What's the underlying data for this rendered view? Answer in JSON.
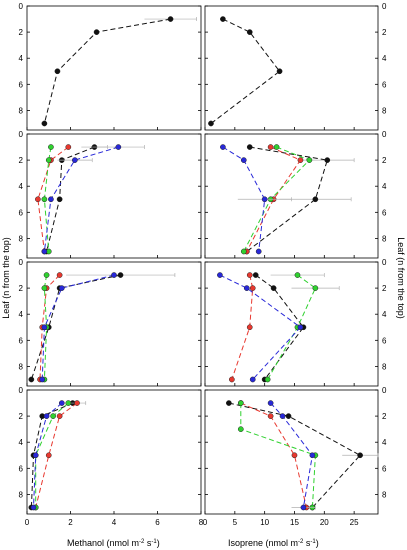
{
  "figure": {
    "y_axis_label_left": "Leaf (n  from the top)",
    "y_axis_label_right": "Leaf (n  from the top)",
    "x_axis_label_left": "Methanol (nmol m",
    "x_axis_label_left_sup": "-2",
    "x_axis_label_left_mid": " s",
    "x_axis_label_left_sup2": "-1",
    "x_axis_label_left_end": ")",
    "x_axis_label_right": "Isoprene (nmol m",
    "x_axis_label_right_sup": "-2",
    "x_axis_label_right_mid": " s",
    "x_axis_label_right_sup2": "-1",
    "x_axis_label_right_end": ")",
    "colors": {
      "black": "#111111",
      "red": "#e8382f",
      "green": "#2fd12f",
      "blue": "#2828d8",
      "errorbar": "#b0b0b0"
    }
  },
  "chart_data": [
    {
      "panel": "row1-methanol",
      "type": "line",
      "xlim": [
        0,
        8
      ],
      "ylim": [
        9.5,
        0
      ],
      "xticks": [
        0,
        2,
        4,
        6,
        8
      ],
      "yticks": [
        0,
        2,
        4,
        6,
        8
      ],
      "series": [
        {
          "color": "black",
          "points": [
            [
              6.6,
              1
            ],
            [
              3.2,
              2
            ],
            [
              1.4,
              5
            ],
            [
              0.8,
              9
            ]
          ],
          "err": [
            1.2,
            0,
            0,
            0
          ]
        }
      ]
    },
    {
      "panel": "row1-isoprene",
      "type": "line",
      "xlim": [
        0,
        29
      ],
      "ylim": [
        9.5,
        0
      ],
      "xticks": [
        0,
        5,
        10,
        15,
        20,
        25
      ],
      "yticks": [
        0,
        2,
        4,
        6,
        8
      ],
      "series": [
        {
          "color": "black",
          "points": [
            [
              3,
              1
            ],
            [
              7.5,
              2
            ],
            [
              12.5,
              5
            ],
            [
              1,
              9
            ]
          ],
          "err": [
            0,
            0,
            0,
            0
          ]
        }
      ]
    },
    {
      "panel": "row2-methanol",
      "type": "line",
      "xlim": [
        0,
        8
      ],
      "ylim": [
        9.5,
        0
      ],
      "xticks": [
        0,
        2,
        4,
        6,
        8
      ],
      "yticks": [
        0,
        2,
        4,
        6,
        8
      ],
      "series": [
        {
          "color": "black",
          "points": [
            [
              3.1,
              1
            ],
            [
              1.6,
              2
            ],
            [
              1.5,
              5
            ],
            [
              0.9,
              9
            ]
          ],
          "err": [
            0.6,
            0,
            0,
            0
          ]
        },
        {
          "color": "red",
          "points": [
            [
              1.9,
              1
            ],
            [
              1.1,
              2
            ],
            [
              0.5,
              5
            ],
            [
              0.8,
              9
            ]
          ],
          "err": [
            0,
            0,
            0,
            0
          ]
        },
        {
          "color": "green",
          "points": [
            [
              1.1,
              1
            ],
            [
              1.0,
              2
            ],
            [
              0.8,
              5
            ],
            [
              1.0,
              9
            ]
          ],
          "err": [
            0,
            0,
            0,
            0
          ]
        },
        {
          "color": "blue",
          "points": [
            [
              4.2,
              1
            ],
            [
              2.2,
              2
            ],
            [
              1.1,
              5
            ],
            [
              0.8,
              9
            ]
          ],
          "err": [
            1.2,
            0.8,
            0,
            0
          ]
        }
      ]
    },
    {
      "panel": "row2-isoprene",
      "type": "line",
      "xlim": [
        0,
        29
      ],
      "ylim": [
        9.5,
        0
      ],
      "xticks": [
        0,
        5,
        10,
        15,
        20,
        25
      ],
      "yticks": [
        0,
        2,
        4,
        6,
        8
      ],
      "series": [
        {
          "color": "black",
          "points": [
            [
              7.5,
              1
            ],
            [
              20.5,
              2
            ],
            [
              18.5,
              5
            ],
            [
              7,
              9
            ]
          ],
          "err": [
            0,
            4.5,
            6,
            0
          ]
        },
        {
          "color": "red",
          "points": [
            [
              11,
              1
            ],
            [
              16,
              2
            ],
            [
              11.5,
              5
            ],
            [
              7,
              9
            ]
          ],
          "err": [
            0,
            0,
            0,
            0
          ]
        },
        {
          "color": "green",
          "points": [
            [
              12,
              1
            ],
            [
              17.5,
              2
            ],
            [
              11,
              5
            ],
            [
              6.5,
              9
            ]
          ],
          "err": [
            0,
            0,
            0,
            0
          ]
        },
        {
          "color": "blue",
          "points": [
            [
              3,
              1
            ],
            [
              6.5,
              2
            ],
            [
              10,
              5
            ],
            [
              9,
              9
            ]
          ],
          "err": [
            0,
            0,
            4.5,
            0
          ]
        }
      ]
    },
    {
      "panel": "row3-methanol",
      "type": "line",
      "xlim": [
        0,
        8
      ],
      "ylim": [
        9.5,
        0
      ],
      "xticks": [
        0,
        2,
        4,
        6,
        8
      ],
      "yticks": [
        0,
        2,
        4,
        6,
        8
      ],
      "series": [
        {
          "color": "black",
          "points": [
            [
              4.3,
              1
            ],
            [
              1.5,
              2
            ],
            [
              1.0,
              5
            ],
            [
              0.2,
              9
            ]
          ],
          "err": [
            2.5,
            0,
            0,
            0
          ]
        },
        {
          "color": "red",
          "points": [
            [
              1.5,
              1
            ],
            [
              0.9,
              2
            ],
            [
              0.7,
              5
            ],
            [
              0.6,
              9
            ]
          ],
          "err": [
            0,
            0,
            0,
            0
          ]
        },
        {
          "color": "green",
          "points": [
            [
              0.9,
              1
            ],
            [
              0.8,
              2
            ],
            [
              0.9,
              5
            ],
            [
              0.8,
              9
            ]
          ],
          "err": [
            0,
            0,
            0,
            0
          ]
        },
        {
          "color": "blue",
          "points": [
            [
              4.0,
              1
            ],
            [
              1.6,
              2
            ],
            [
              0.8,
              5
            ],
            [
              0.7,
              9
            ]
          ],
          "err": [
            0,
            0,
            0,
            0
          ]
        }
      ]
    },
    {
      "panel": "row3-isoprene",
      "type": "line",
      "xlim": [
        0,
        29
      ],
      "ylim": [
        9.5,
        0
      ],
      "xticks": [
        0,
        5,
        10,
        15,
        20,
        25
      ],
      "yticks": [
        0,
        2,
        4,
        6,
        8
      ],
      "series": [
        {
          "color": "black",
          "points": [
            [
              8.5,
              1
            ],
            [
              11.5,
              2
            ],
            [
              16.5,
              5
            ],
            [
              10,
              9
            ]
          ],
          "err": [
            0,
            0,
            0,
            0
          ]
        },
        {
          "color": "red",
          "points": [
            [
              7.5,
              1
            ],
            [
              8,
              2
            ],
            [
              7.5,
              5
            ],
            [
              4.5,
              9
            ]
          ],
          "err": [
            0,
            0,
            0,
            0
          ]
        },
        {
          "color": "green",
          "points": [
            [
              15.5,
              1
            ],
            [
              18.5,
              2
            ],
            [
              15.5,
              5
            ],
            [
              10.5,
              9
            ]
          ],
          "err": [
            4.5,
            4,
            0,
            0
          ]
        },
        {
          "color": "blue",
          "points": [
            [
              2.5,
              1
            ],
            [
              7,
              2
            ],
            [
              16,
              5
            ],
            [
              8,
              9
            ]
          ],
          "err": [
            0,
            0,
            0,
            0
          ]
        }
      ]
    },
    {
      "panel": "row4-methanol",
      "type": "line",
      "xlim": [
        0,
        8
      ],
      "ylim": [
        9.5,
        0
      ],
      "xticks": [
        0,
        2,
        4,
        6,
        8
      ],
      "yticks": [
        0,
        2,
        4,
        6,
        8
      ],
      "series": [
        {
          "color": "black",
          "points": [
            [
              2.1,
              1
            ],
            [
              0.7,
              2
            ],
            [
              0.3,
              5
            ],
            [
              0.2,
              9
            ]
          ],
          "err": [
            0,
            0,
            0,
            0
          ]
        },
        {
          "color": "red",
          "points": [
            [
              2.3,
              1
            ],
            [
              1.5,
              2
            ],
            [
              1.0,
              5
            ],
            [
              0.4,
              9
            ]
          ],
          "err": [
            0.4,
            0,
            0,
            0
          ]
        },
        {
          "color": "green",
          "points": [
            [
              1.9,
              1
            ],
            [
              1.2,
              2
            ],
            [
              0.4,
              5
            ],
            [
              0.4,
              9
            ]
          ],
          "err": [
            0,
            0,
            0,
            0
          ]
        },
        {
          "color": "blue",
          "points": [
            [
              1.6,
              1
            ],
            [
              0.9,
              2
            ],
            [
              0.4,
              5
            ],
            [
              0.3,
              9
            ]
          ],
          "err": [
            0,
            0,
            0,
            0
          ]
        }
      ]
    },
    {
      "panel": "row4-isoprene",
      "type": "line",
      "xlim": [
        0,
        29
      ],
      "ylim": [
        9.5,
        0
      ],
      "xticks": [
        0,
        5,
        10,
        15,
        20,
        25
      ],
      "yticks": [
        0,
        2,
        4,
        6,
        8
      ],
      "series": [
        {
          "color": "black",
          "points": [
            [
              4,
              1
            ],
            [
              14,
              2
            ],
            [
              26,
              5
            ],
            [
              18,
              9
            ]
          ],
          "err": [
            0,
            0,
            3,
            0
          ]
        },
        {
          "color": "red",
          "points": [
            [
              6,
              1
            ],
            [
              11,
              2
            ],
            [
              15,
              5
            ],
            [
              17,
              9
            ]
          ],
          "err": [
            0,
            0,
            0,
            0
          ]
        },
        {
          "color": "green",
          "points": [
            [
              6,
              1
            ],
            [
              6,
              3
            ],
            [
              18.5,
              5
            ],
            [
              18,
              9
            ]
          ],
          "err": [
            0,
            0,
            0,
            0
          ]
        },
        {
          "color": "blue",
          "points": [
            [
              11,
              1
            ],
            [
              13,
              2
            ],
            [
              18,
              5
            ],
            [
              16.5,
              9
            ]
          ],
          "err": [
            0,
            0,
            0,
            2
          ]
        }
      ]
    }
  ]
}
